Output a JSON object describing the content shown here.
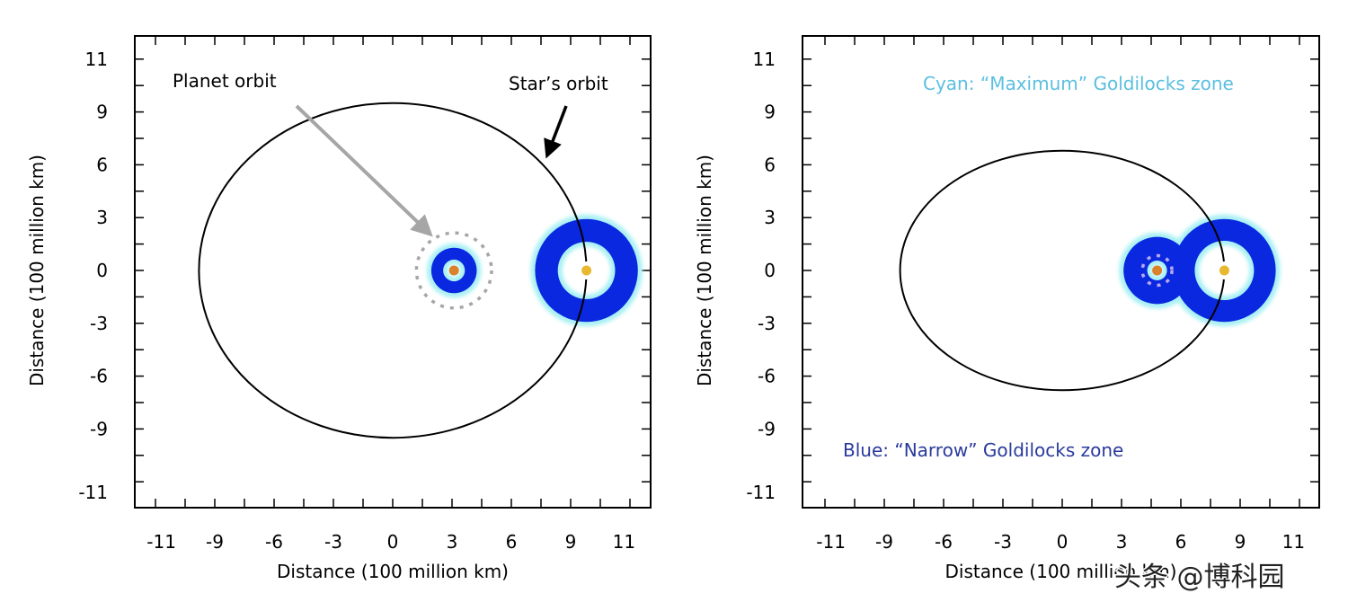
{
  "colors": {
    "narrow": "#0a28e0",
    "maximum": "#a8f0f4",
    "planet": "#d9822b",
    "star": "#e8b830",
    "orbit": "#000000",
    "cyan_text": "#5bbfe0",
    "blue_text": "#2a3a9c",
    "arrow_gray": "#a6a6a6"
  },
  "chart_data": [
    {
      "type": "scatter",
      "xlabel": "Distance (100 million km)",
      "ylabel": "Distance (100 million km)",
      "xticks": [
        "-11",
        "-9",
        "-6",
        "-3",
        "0",
        "3",
        "6",
        "9",
        "11"
      ],
      "yticks": [
        "11",
        "9",
        "6",
        "3",
        "0",
        "-3",
        "-6",
        "-9",
        "-11"
      ],
      "xlim": [
        -13,
        13
      ],
      "ylim": [
        -12,
        12
      ],
      "star_orbit": {
        "cx": 0,
        "cy": 0,
        "rx": 9.8,
        "ry": 9.5
      },
      "planet": {
        "x": 3.1,
        "y": 0,
        "orbit_radius": 1.9,
        "narrow_zone": [
          0.55,
          1.15
        ]
      },
      "star": {
        "x": 9.8,
        "y": 0,
        "narrow_zone": [
          1.45,
          2.6
        ]
      },
      "annotations": [
        "Planet orbit",
        "Star’s orbit"
      ]
    },
    {
      "type": "scatter",
      "xlabel": "Distance (100 million km)",
      "ylabel": "Distance (100 million km)",
      "xticks": [
        "-11",
        "-9",
        "-6",
        "-3",
        "0",
        "3",
        "6",
        "9",
        "11"
      ],
      "yticks": [
        "11",
        "9",
        "6",
        "3",
        "0",
        "-3",
        "-6",
        "-9",
        "-11"
      ],
      "xlim": [
        -13,
        13
      ],
      "ylim": [
        -12,
        12
      ],
      "star_orbit": {
        "cx": 0,
        "cy": 0,
        "rx": 8.2,
        "ry": 6.8
      },
      "planet": {
        "x": 4.8,
        "y": 0,
        "orbit_radius": 0.75,
        "narrow_zone": [
          0.5,
          1.7
        ]
      },
      "star": {
        "x": 8.2,
        "y": 0,
        "narrow_zone": [
          1.5,
          2.6
        ]
      },
      "annotations": [
        "Cyan: “Maximum” Goldilocks zone",
        "Blue: “Narrow” Goldilocks zone"
      ]
    }
  ],
  "watermark": "头条 @博科园"
}
